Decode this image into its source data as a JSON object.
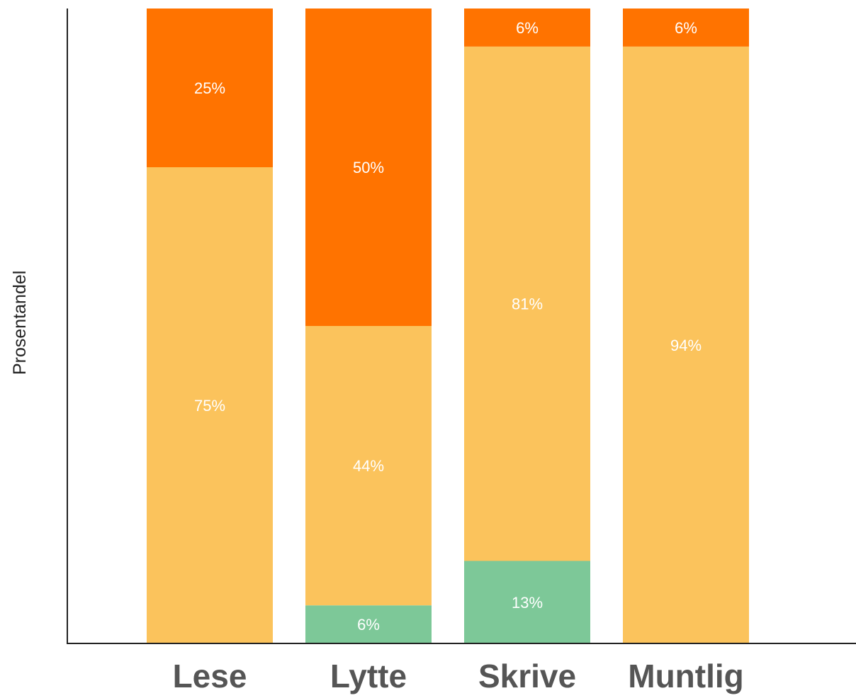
{
  "chart_data": {
    "type": "bar",
    "stacked": true,
    "categories": [
      "Lese",
      "Lytte",
      "Skrive",
      "Muntlig"
    ],
    "series": [
      {
        "values": [
          0,
          6,
          13,
          0
        ],
        "labels": [
          "",
          "6%",
          "13%",
          ""
        ],
        "color": "#7dc898"
      },
      {
        "values": [
          75,
          44,
          81,
          94
        ],
        "labels": [
          "75%",
          "44%",
          "81%",
          "94%"
        ],
        "color": "#fbc35c"
      },
      {
        "values": [
          25,
          50,
          6,
          6
        ],
        "labels": [
          "25%",
          "50%",
          "6%",
          "6%"
        ],
        "color": "#ff7300"
      }
    ],
    "xlabel": "",
    "ylabel": "Prosentandel",
    "ylim": [
      0,
      100
    ],
    "grid": false,
    "legend": "none"
  }
}
